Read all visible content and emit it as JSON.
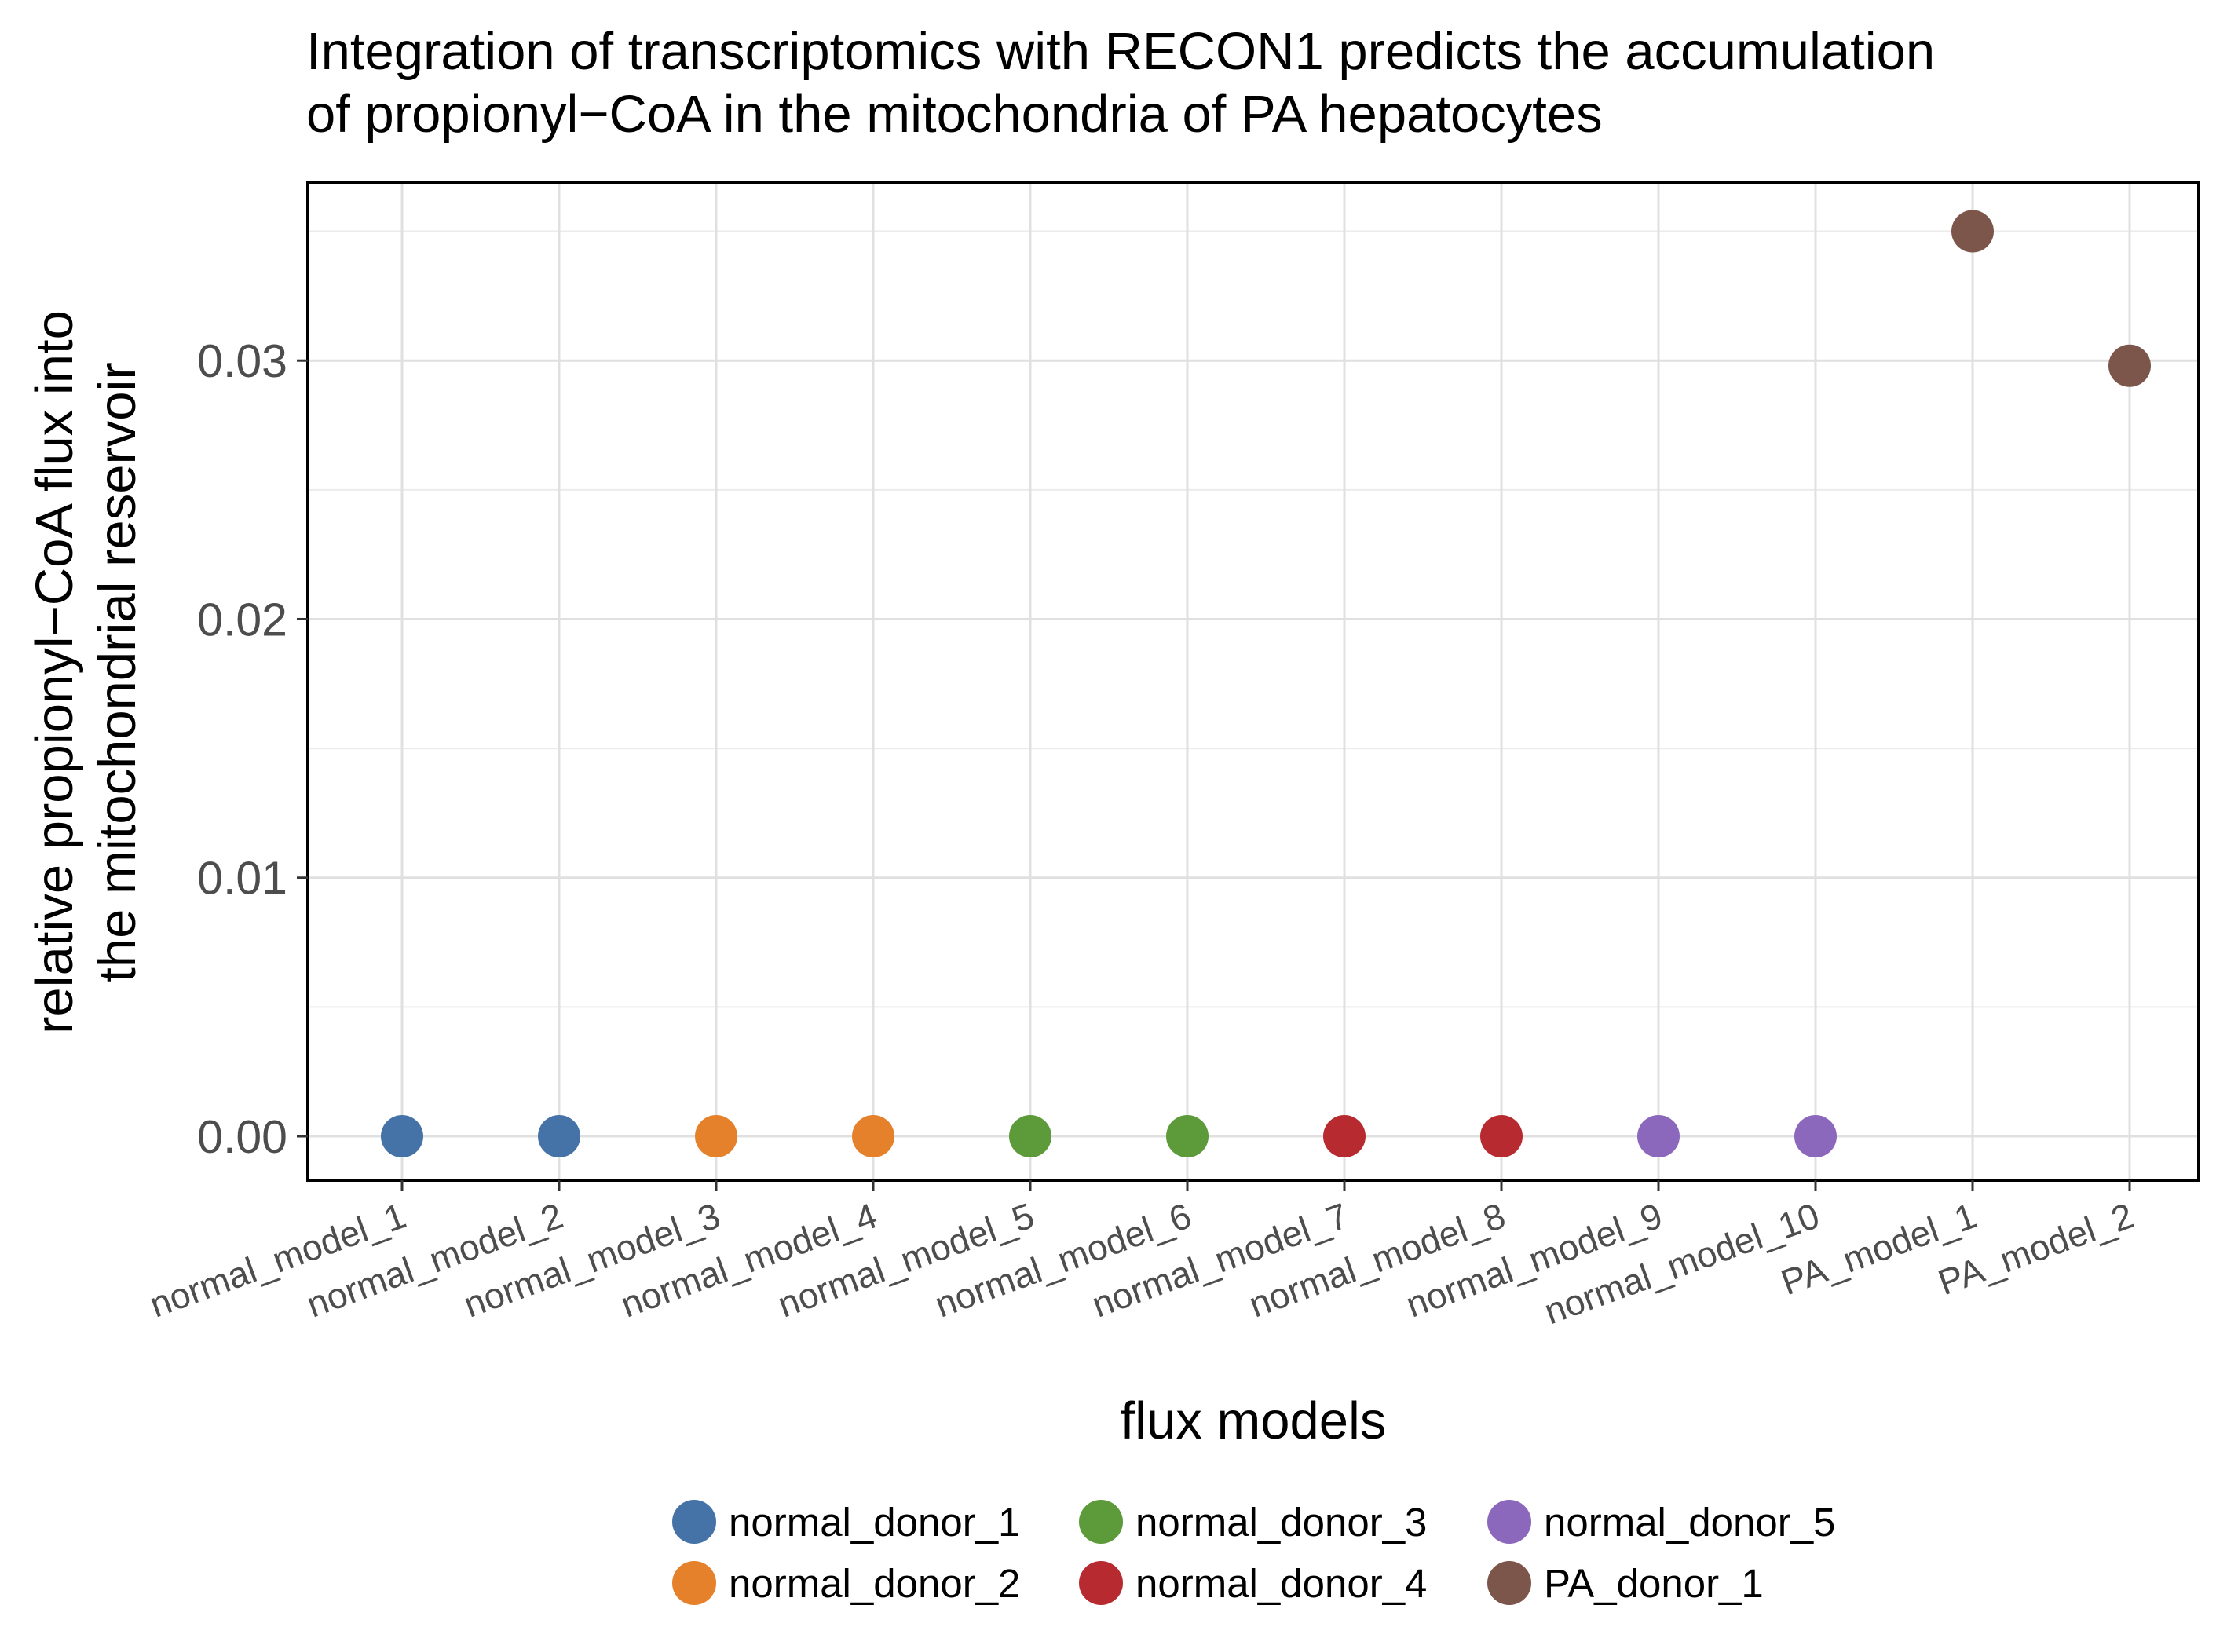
{
  "chart_data": {
    "type": "scatter",
    "title": [
      "Integration of transcriptomics with RECON1 predicts the accumulation",
      "of propionyl−CoA in the mitochondria of PA hepatocytes"
    ],
    "xlabel": "flux models",
    "ylabel": [
      "relative propionyl−CoA flux into",
      "the mitochondrial reservoir"
    ],
    "categories": [
      "normal_model_1",
      "normal_model_2",
      "normal_model_3",
      "normal_model_4",
      "normal_model_5",
      "normal_model_6",
      "normal_model_7",
      "normal_model_8",
      "normal_model_9",
      "normal_model_10",
      "PA_model_1",
      "PA_model_2"
    ],
    "ylim": [
      -0.0017,
      0.0369
    ],
    "yticks": [
      {
        "value": 0.0,
        "label": "0.00"
      },
      {
        "value": 0.01,
        "label": "0.01"
      },
      {
        "value": 0.02,
        "label": "0.02"
      },
      {
        "value": 0.03,
        "label": "0.03"
      }
    ],
    "grid": true,
    "legend_position": "bottom",
    "series": [
      {
        "name": "normal_donor_1",
        "color": "#4572A7",
        "points": [
          {
            "x": "normal_model_1",
            "y": 0.0
          },
          {
            "x": "normal_model_2",
            "y": 0.0
          }
        ]
      },
      {
        "name": "normal_donor_2",
        "color": "#E6812B",
        "points": [
          {
            "x": "normal_model_3",
            "y": 0.0
          },
          {
            "x": "normal_model_4",
            "y": 0.0
          }
        ]
      },
      {
        "name": "normal_donor_3",
        "color": "#5C9A3A",
        "points": [
          {
            "x": "normal_model_5",
            "y": 0.0
          },
          {
            "x": "normal_model_6",
            "y": 0.0
          }
        ]
      },
      {
        "name": "normal_donor_4",
        "color": "#B72A2F",
        "points": [
          {
            "x": "normal_model_7",
            "y": 0.0
          },
          {
            "x": "normal_model_8",
            "y": 0.0
          }
        ]
      },
      {
        "name": "normal_donor_5",
        "color": "#8B68BC",
        "points": [
          {
            "x": "normal_model_9",
            "y": 0.0
          },
          {
            "x": "normal_model_10",
            "y": 0.0
          }
        ]
      },
      {
        "name": "PA_donor_1",
        "color": "#7C554B",
        "points": [
          {
            "x": "PA_model_1",
            "y": 0.035
          },
          {
            "x": "PA_model_2",
            "y": 0.0298
          }
        ]
      }
    ]
  }
}
